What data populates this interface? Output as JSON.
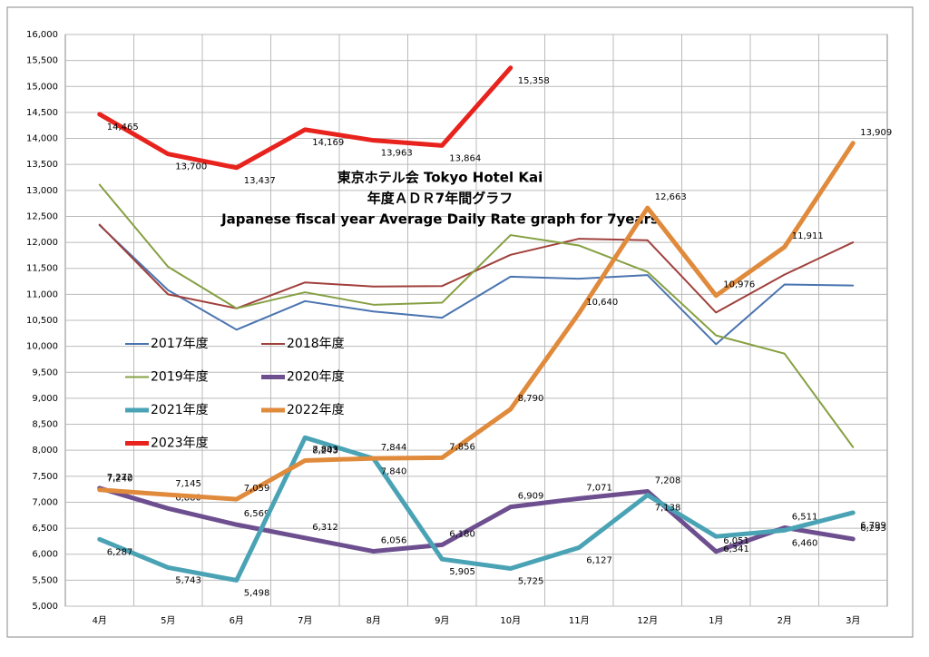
{
  "chart_data": {
    "type": "line",
    "title_lines": [
      "東京ホテル会 Tokyo Hotel Kai",
      "年度ＡＤＲ7年間グラフ",
      "Japanese fiscal year Average Daily Rate graph for 7years"
    ],
    "categories": [
      "4月",
      "5月",
      "6月",
      "7月",
      "8月",
      "9月",
      "10月",
      "11月",
      "12月",
      "1月",
      "2月",
      "3月"
    ],
    "ylim": [
      5000,
      16000
    ],
    "yticks": [
      {
        "value": 5000,
        "label": "5,000"
      },
      {
        "value": 5500,
        "label": "5,500"
      },
      {
        "value": 6000,
        "label": "6,000"
      },
      {
        "value": 6500,
        "label": "6,500"
      },
      {
        "value": 7000,
        "label": "7,000"
      },
      {
        "value": 7500,
        "label": "7,500"
      },
      {
        "value": 8000,
        "label": "8,000"
      },
      {
        "value": 8500,
        "label": "8,500"
      },
      {
        "value": 9000,
        "label": "9,000"
      },
      {
        "value": 9500,
        "label": "9,500"
      },
      {
        "value": 10000,
        "label": "10,000"
      },
      {
        "value": 10500,
        "label": "10,500"
      },
      {
        "value": 11000,
        "label": "11,000"
      },
      {
        "value": 11500,
        "label": "11,500"
      },
      {
        "value": 12000,
        "label": "12,000"
      },
      {
        "value": 12500,
        "label": "12,500"
      },
      {
        "value": 13000,
        "label": "13,000"
      },
      {
        "value": 13500,
        "label": "13,500"
      },
      {
        "value": 14000,
        "label": "14,000"
      },
      {
        "value": 14500,
        "label": "14,500"
      },
      {
        "value": 15000,
        "label": "15,000"
      },
      {
        "value": 15500,
        "label": "15,500"
      },
      {
        "value": 16000,
        "label": "16,000"
      }
    ],
    "grid": true,
    "series": [
      {
        "name": "2017年度",
        "color": "#4a74b0",
        "line_width": 2,
        "values": [
          12330,
          11080,
          10320,
          10870,
          10670,
          10550,
          11340,
          11300,
          11370,
          10040,
          11190,
          11170
        ]
      },
      {
        "name": "2018年度",
        "color": "#a0403c",
        "line_width": 2,
        "values": [
          12340,
          11000,
          10730,
          11230,
          11150,
          11160,
          11760,
          12070,
          12040,
          10650,
          11380,
          12000
        ]
      },
      {
        "name": "2019年度",
        "color": "#86a043",
        "line_width": 2,
        "values": [
          13110,
          11530,
          10730,
          11040,
          10800,
          10840,
          12140,
          11940,
          11430,
          10210,
          9860,
          8060
        ]
      },
      {
        "name": "2020年度",
        "color": "#6d4f8f",
        "line_width": 5,
        "values": [
          7272,
          6880,
          6569,
          6312,
          6056,
          6180,
          6909,
          7071,
          7208,
          6051,
          6511,
          6293
        ],
        "value_labels": [
          "7,272",
          "6,880",
          "6,569",
          "6,312",
          "6,056",
          "6,180",
          "6,909",
          "7,071",
          "7,208",
          "6,051",
          "6,511",
          "6,293"
        ]
      },
      {
        "name": "2021年度",
        "color": "#4aa3b5",
        "line_width": 5,
        "values": [
          6287,
          5743,
          5498,
          8243,
          7840,
          5905,
          5725,
          6127,
          7138,
          6341,
          6460,
          6799
        ],
        "value_labels": [
          "6,287",
          "5,743",
          "5,498",
          "8,243",
          "7,840",
          "5,905",
          "5,725",
          "6,127",
          "7,138",
          "6,341",
          "6,460",
          "6,799"
        ]
      },
      {
        "name": "2022年度",
        "color": "#e08a3c",
        "line_width": 5,
        "values": [
          7240,
          7145,
          7059,
          7803,
          7844,
          7856,
          8790,
          10640,
          12663,
          10976,
          11911,
          13909
        ],
        "value_labels": [
          "7,240",
          "7,145",
          "7,059",
          "7,803",
          "7,844",
          "7,856",
          "8,790",
          "10,640",
          "12,663",
          "10,976",
          "11,911",
          "13,909"
        ]
      },
      {
        "name": "2023年度",
        "color": "#e8221c",
        "line_width": 5,
        "values": [
          14465,
          13700,
          13437,
          14169,
          13963,
          13864,
          15358,
          null,
          null,
          null,
          null,
          null
        ],
        "value_labels": [
          "14,465",
          "13,700",
          "13,437",
          "14,169",
          "13,963",
          "13,864",
          "15,358",
          null,
          null,
          null,
          null,
          null
        ]
      }
    ]
  }
}
